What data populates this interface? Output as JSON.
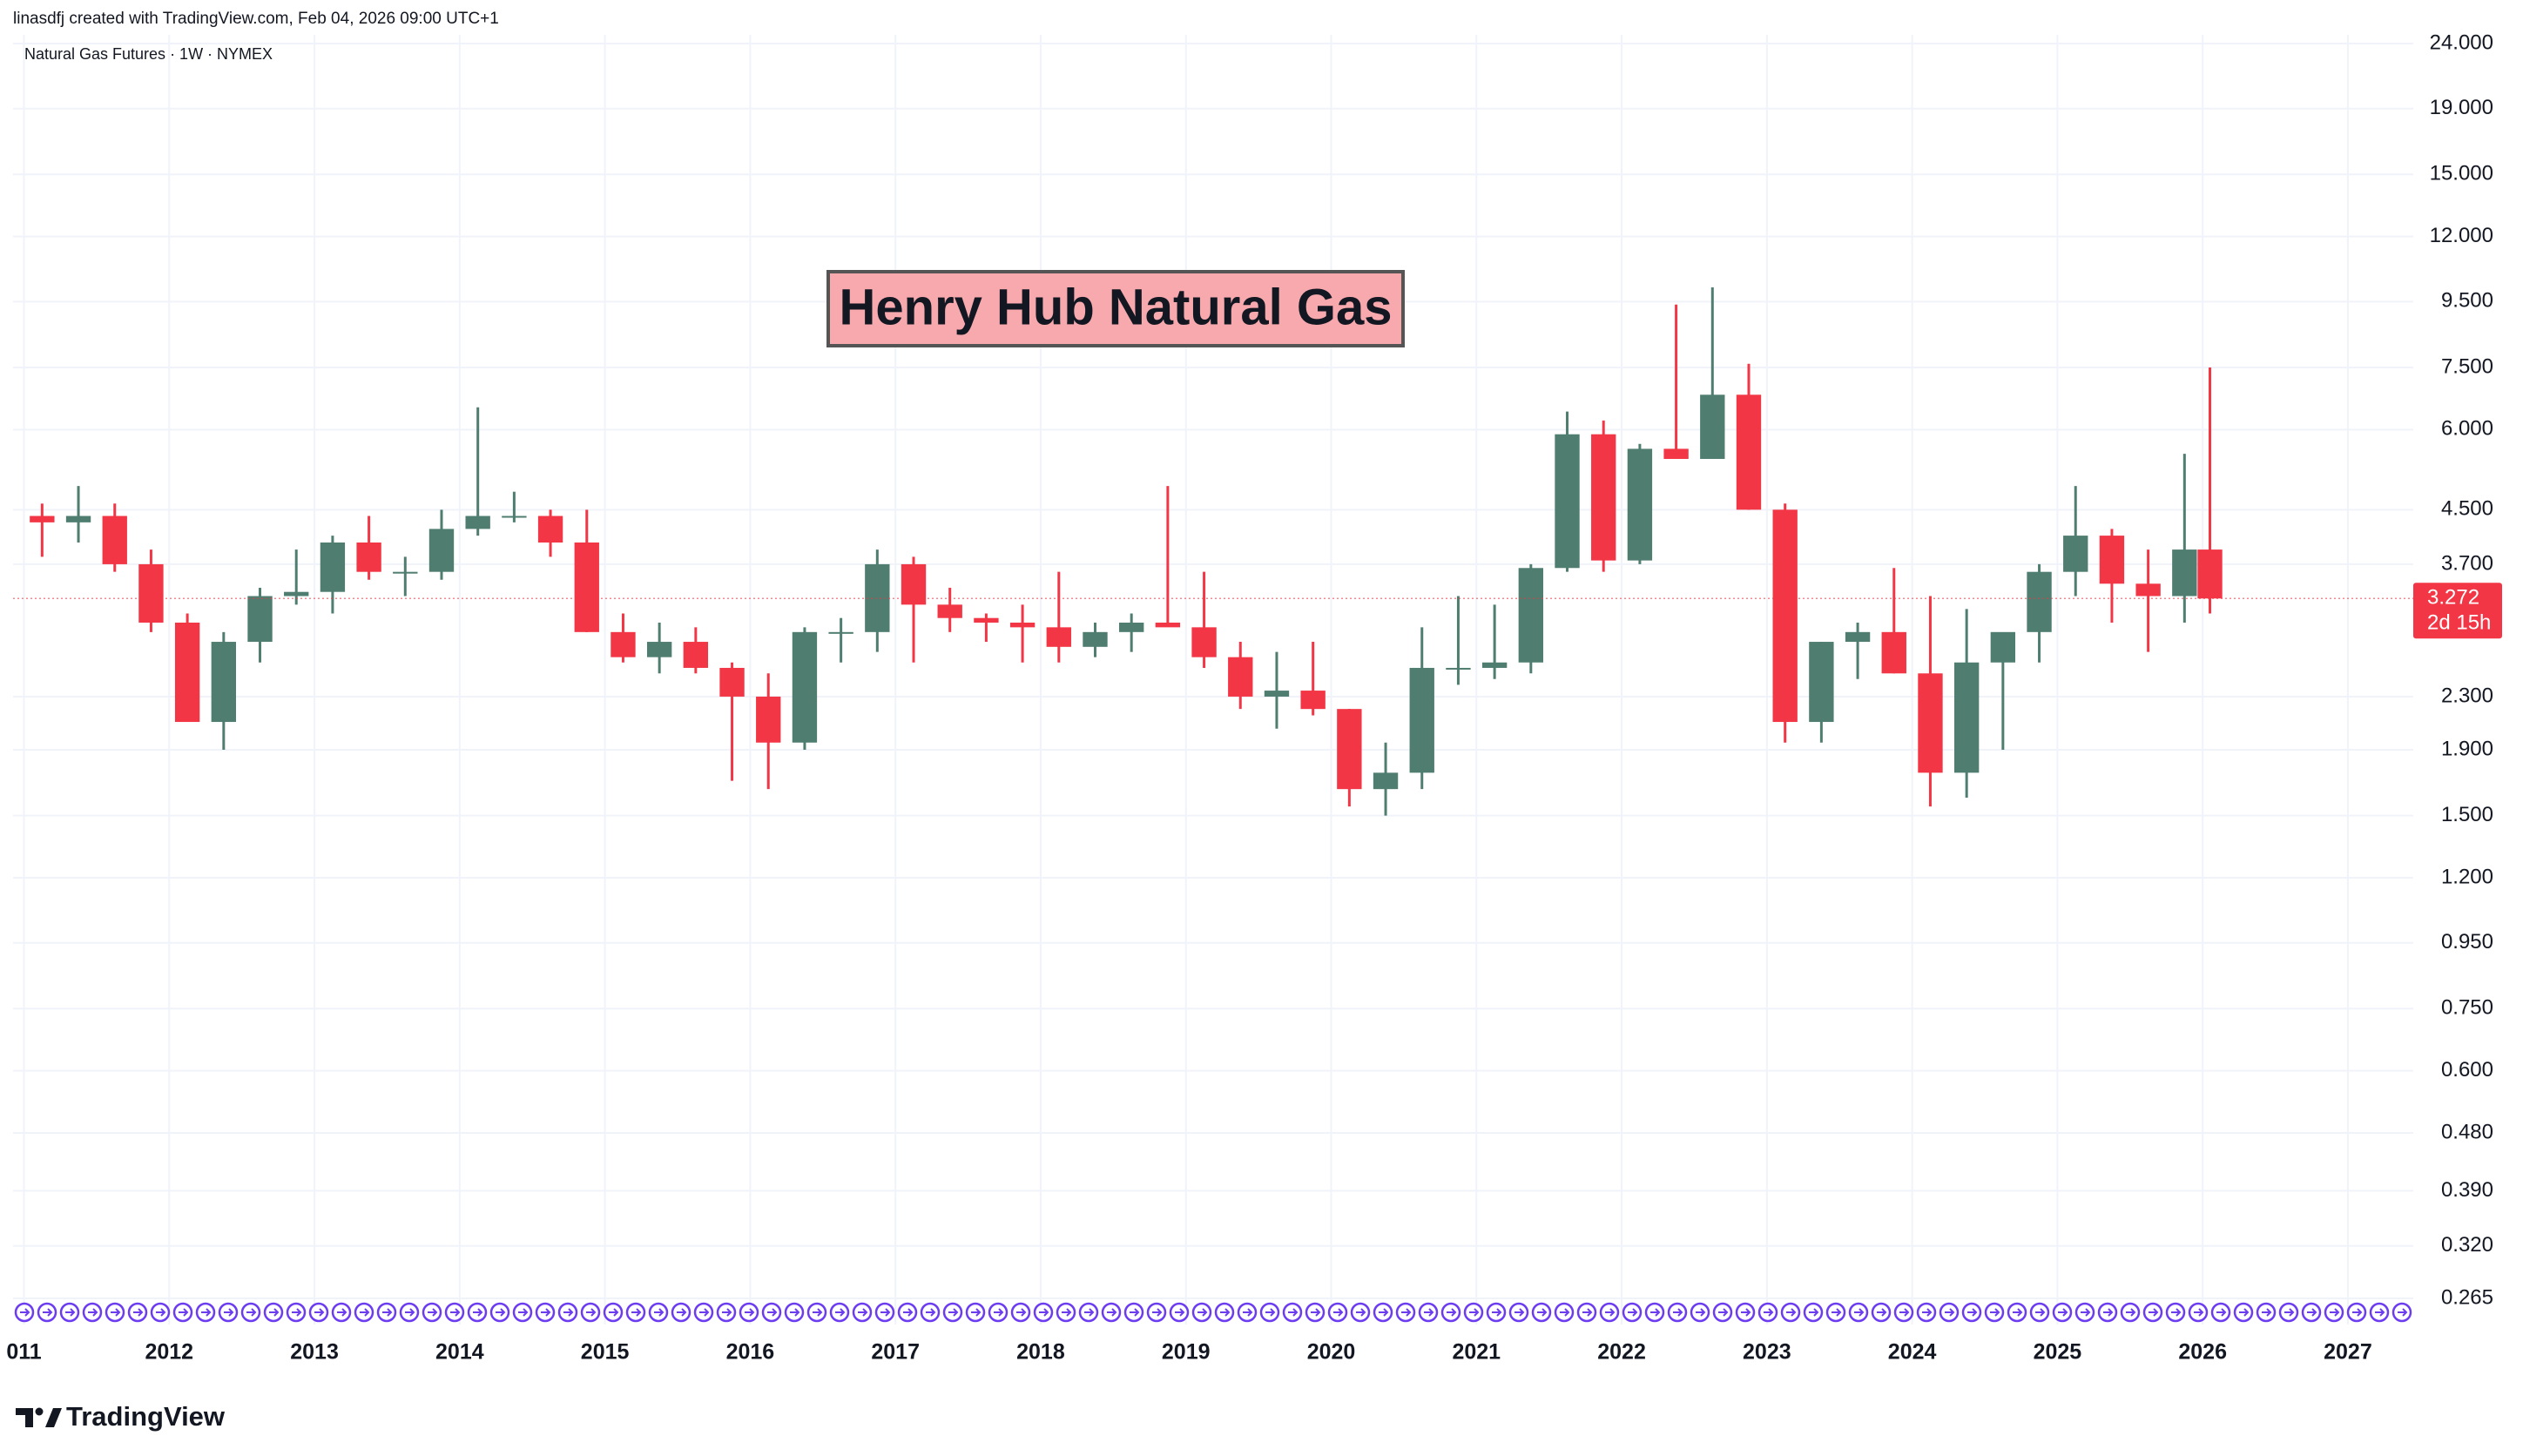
{
  "header": {
    "credit": "linasdfj created with TradingView.com, Feb 04, 2026 09:00 UTC+1"
  },
  "footer": {
    "brand": "TradingView"
  },
  "chart_data": {
    "type": "candlestick",
    "title": "Natural Gas Futures · 1W · NYMEX",
    "annotation": "Henry Hub Natural Gas",
    "log_scale": true,
    "grid": true,
    "up_color": "#4f7d70",
    "down_color": "#f23645",
    "x": [
      2011.125,
      2011.375,
      2011.625,
      2011.875,
      2012.125,
      2012.375,
      2012.625,
      2012.875,
      2013.125,
      2013.375,
      2013.625,
      2013.875,
      2014.125,
      2014.375,
      2014.625,
      2014.875,
      2015.125,
      2015.375,
      2015.625,
      2015.875,
      2016.125,
      2016.375,
      2016.625,
      2016.875,
      2017.125,
      2017.375,
      2017.625,
      2017.875,
      2018.125,
      2018.375,
      2018.625,
      2018.875,
      2019.125,
      2019.375,
      2019.625,
      2019.875,
      2020.125,
      2020.375,
      2020.625,
      2020.875,
      2021.125,
      2021.375,
      2021.625,
      2021.875,
      2022.125,
      2022.375,
      2022.625,
      2022.875,
      2023.125,
      2023.375,
      2023.625,
      2023.875,
      2024.125,
      2024.375,
      2024.625,
      2024.875,
      2025.125,
      2025.375,
      2025.625,
      2025.875,
      2026.05
    ],
    "open": [
      4.4,
      4.3,
      4.4,
      3.7,
      3.0,
      2.1,
      2.8,
      3.3,
      3.35,
      4.0,
      3.6,
      3.6,
      4.2,
      4.4,
      4.4,
      4.0,
      2.9,
      2.65,
      2.8,
      2.55,
      2.3,
      1.95,
      2.9,
      2.9,
      3.7,
      3.2,
      3.05,
      3.0,
      2.95,
      2.75,
      2.9,
      3.0,
      2.95,
      2.65,
      2.3,
      2.35,
      2.2,
      1.65,
      1.75,
      2.55,
      2.55,
      2.6,
      3.65,
      5.9,
      3.75,
      5.6,
      5.4,
      6.8,
      4.5,
      2.1,
      2.8,
      2.9,
      2.5,
      1.75,
      2.6,
      2.9,
      3.6,
      4.1,
      3.45,
      3.3,
      3.9
    ],
    "high": [
      4.6,
      4.9,
      4.6,
      3.9,
      3.1,
      2.9,
      3.4,
      3.9,
      4.1,
      4.4,
      3.8,
      4.5,
      6.5,
      4.8,
      4.5,
      4.5,
      3.1,
      3.0,
      2.95,
      2.6,
      2.5,
      2.95,
      3.05,
      3.9,
      3.8,
      3.4,
      3.1,
      3.2,
      3.6,
      3.0,
      3.1,
      4.9,
      3.6,
      2.8,
      2.7,
      2.8,
      2.2,
      1.95,
      2.95,
      3.3,
      3.2,
      3.7,
      6.4,
      6.2,
      5.7,
      9.4,
      10.0,
      7.6,
      4.6,
      2.8,
      3.0,
      3.65,
      3.3,
      3.15,
      2.7,
      3.7,
      4.9,
      4.2,
      3.9,
      5.5,
      7.5
    ],
    "low": [
      3.8,
      4.0,
      3.6,
      2.9,
      2.1,
      1.9,
      2.6,
      3.2,
      3.1,
      3.5,
      3.3,
      3.5,
      4.1,
      4.3,
      3.8,
      2.9,
      2.6,
      2.5,
      2.5,
      1.7,
      1.65,
      1.9,
      2.6,
      2.7,
      2.6,
      2.9,
      2.8,
      2.6,
      2.6,
      2.65,
      2.7,
      3.0,
      2.55,
      2.2,
      2.05,
      2.15,
      1.55,
      1.5,
      1.65,
      2.4,
      2.45,
      2.5,
      3.6,
      3.6,
      3.7,
      5.4,
      5.4,
      4.5,
      1.95,
      1.95,
      2.45,
      2.5,
      1.55,
      1.6,
      1.9,
      2.6,
      3.3,
      3.0,
      2.7,
      3.0,
      3.1
    ],
    "close": [
      4.3,
      4.4,
      3.7,
      3.0,
      2.1,
      2.8,
      3.3,
      3.35,
      4.0,
      3.6,
      3.6,
      4.2,
      4.4,
      4.4,
      4.0,
      2.9,
      2.65,
      2.8,
      2.55,
      2.3,
      1.95,
      2.9,
      2.9,
      3.7,
      3.2,
      3.05,
      3.0,
      2.95,
      2.75,
      2.9,
      3.0,
      2.95,
      2.65,
      2.3,
      2.35,
      2.2,
      1.65,
      1.75,
      2.55,
      2.55,
      2.6,
      3.65,
      5.9,
      3.75,
      5.6,
      5.4,
      6.8,
      4.5,
      2.1,
      2.8,
      2.9,
      2.5,
      1.75,
      2.6,
      2.9,
      3.6,
      4.1,
      3.45,
      3.3,
      3.9,
      3.272
    ],
    "last_price": 3.272,
    "countdown": "2d 15h",
    "ylim": [
      0.265,
      24
    ],
    "yticks": [
      {
        "value": 24,
        "label": "24.000"
      },
      {
        "value": 19,
        "label": "19.000"
      },
      {
        "value": 15,
        "label": "15.000"
      },
      {
        "value": 12,
        "label": "12.000"
      },
      {
        "value": 9.5,
        "label": "9.500"
      },
      {
        "value": 7.5,
        "label": "7.500"
      },
      {
        "value": 6,
        "label": "6.000"
      },
      {
        "value": 4.5,
        "label": "4.500"
      },
      {
        "value": 3.7,
        "label": "3.700"
      },
      {
        "value": 2.3,
        "label": "2.300"
      },
      {
        "value": 1.9,
        "label": "1.900"
      },
      {
        "value": 1.5,
        "label": "1.500"
      },
      {
        "value": 1.2,
        "label": "1.200"
      },
      {
        "value": 0.95,
        "label": "0.950"
      },
      {
        "value": 0.75,
        "label": "0.750"
      },
      {
        "value": 0.6,
        "label": "0.600"
      },
      {
        "value": 0.48,
        "label": "0.480"
      },
      {
        "value": 0.39,
        "label": "0.390"
      },
      {
        "value": 0.32,
        "label": "0.320"
      },
      {
        "value": 0.265,
        "label": "0.265"
      }
    ],
    "xlim": [
      2010.925,
      2027.45
    ],
    "xticks": [
      {
        "value": 2011,
        "label": "011"
      },
      2012,
      2013,
      2014,
      2015,
      2016,
      2017,
      2018,
      2019,
      2020,
      2021,
      2022,
      2023,
      2024,
      2025,
      2026,
      2027
    ]
  }
}
